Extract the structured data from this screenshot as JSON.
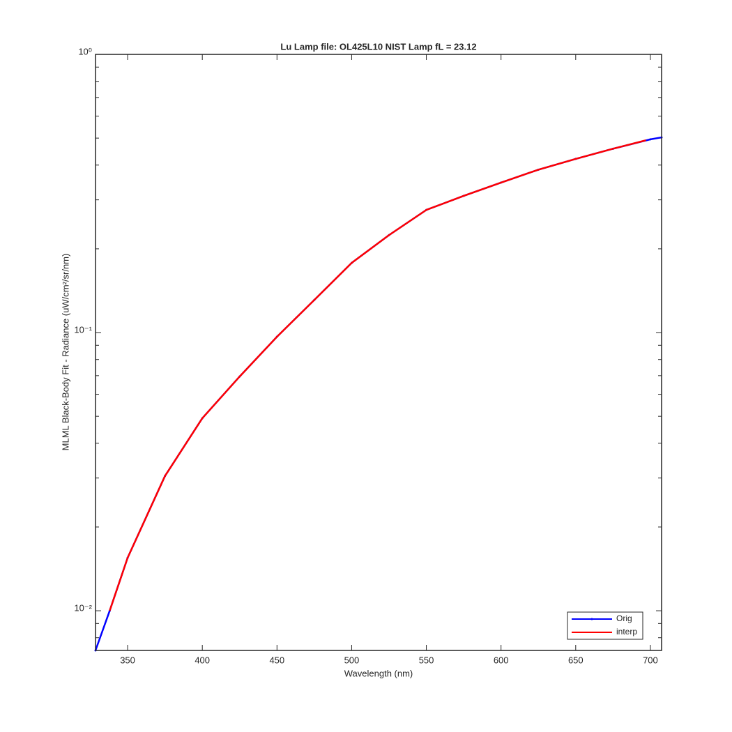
{
  "chart_data": {
    "type": "line",
    "title": "Lu Lamp file: OL425L10  NIST Lamp fL = 23.12",
    "xlabel": "Wavelength (nm)",
    "ylabel": "MLML Black-Body Fit - Radiance (uW/cm²/sr/nm)",
    "xlim": [
      328.5,
      707.5
    ],
    "xticks": [
      350,
      400,
      450,
      500,
      550,
      600,
      650,
      700
    ],
    "ylim": [
      0.0072,
      1
    ],
    "ylog": true,
    "yticks": [
      {
        "value": 0.01,
        "label": "10⁻²"
      },
      {
        "value": 0.1,
        "label": "10⁻¹"
      },
      {
        "value": 1,
        "label": "10⁰"
      }
    ],
    "yminorticks": [
      0.008,
      0.009,
      0.02,
      0.03,
      0.04,
      0.05,
      0.06,
      0.07,
      0.08,
      0.09,
      0.2,
      0.3,
      0.4,
      0.5,
      0.6,
      0.7,
      0.8,
      0.9
    ],
    "legend": "lower right",
    "series": [
      {
        "name": "Orig",
        "color": "#0000ff",
        "marker": true,
        "x": [
          328.5,
          338,
          350,
          375,
          400,
          425,
          450,
          475,
          500,
          525,
          550,
          575,
          600,
          625,
          650,
          675,
          700,
          707.5
        ],
        "values": [
          0.0072,
          0.01,
          0.0155,
          0.0305,
          0.0492,
          0.0695,
          0.0966,
          0.131,
          0.178,
          0.224,
          0.276,
          0.31,
          0.346,
          0.385,
          0.421,
          0.458,
          0.495,
          0.503
        ]
      },
      {
        "name": "interp",
        "color": "#ff0000",
        "marker": false,
        "x": [
          338,
          350,
          375,
          400,
          425,
          450,
          475,
          500,
          525,
          550,
          575,
          600,
          625,
          650,
          675,
          697
        ],
        "values": [
          0.01,
          0.0155,
          0.0305,
          0.0492,
          0.0695,
          0.0966,
          0.131,
          0.178,
          0.224,
          0.276,
          0.31,
          0.346,
          0.385,
          0.421,
          0.458,
          0.491
        ]
      }
    ]
  }
}
